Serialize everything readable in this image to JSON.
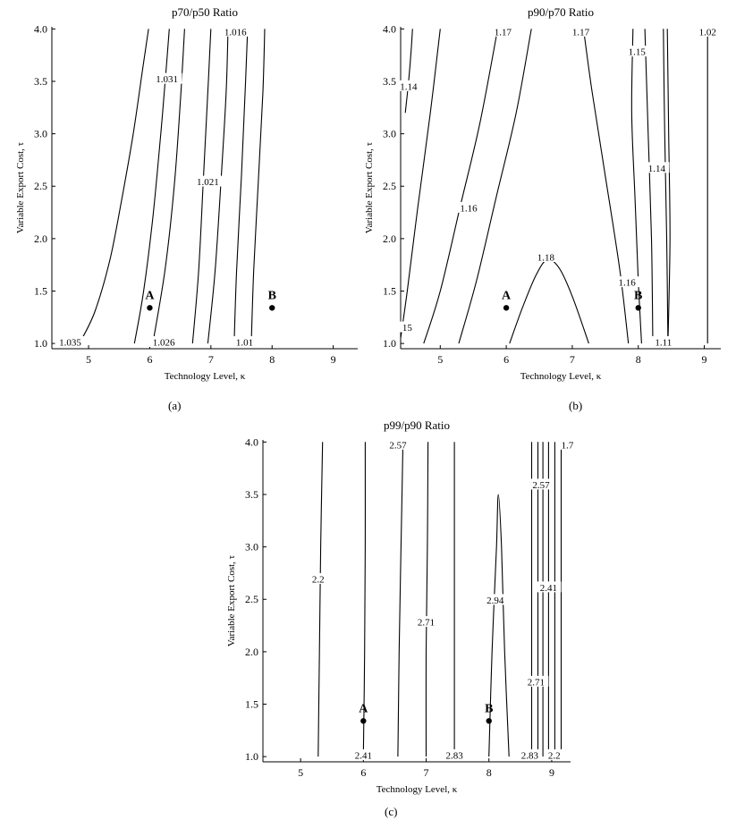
{
  "panels": [
    {
      "id": "a",
      "panel_label": "(a)",
      "chart_data": {
        "type": "contour",
        "title": "p70/p50 Ratio",
        "xlabel": "Technology Level, κ",
        "ylabel": "Variable Export Cost, τ",
        "xlim": [
          4.4,
          9.4
        ],
        "ylim": [
          0.95,
          4.02
        ],
        "xticks": [
          5,
          6,
          7,
          8,
          9
        ],
        "yticks": [
          1.0,
          1.5,
          2.0,
          2.5,
          3.0,
          3.5,
          4.0
        ],
        "contours": [
          {
            "level": "1.035",
            "points": [
              [
                4.85,
                1.0
              ],
              [
                5.1,
                1.3
              ],
              [
                5.35,
                1.8
              ],
              [
                5.55,
                2.4
              ],
              [
                5.73,
                3.0
              ],
              [
                5.88,
                3.6
              ],
              [
                5.98,
                4.0
              ]
            ]
          },
          {
            "level": "1.031",
            "points": [
              [
                5.75,
                1.0
              ],
              [
                5.9,
                1.5
              ],
              [
                6.05,
                2.2
              ],
              [
                6.18,
                3.0
              ],
              [
                6.28,
                3.7
              ],
              [
                6.32,
                4.0
              ]
            ]
          },
          {
            "level": "1.026",
            "points": [
              [
                6.05,
                1.0
              ],
              [
                6.25,
                1.7
              ],
              [
                6.4,
                2.5
              ],
              [
                6.5,
                3.3
              ],
              [
                6.57,
                4.0
              ]
            ]
          },
          {
            "level": "1.021",
            "points": [
              [
                6.7,
                1.0
              ],
              [
                6.8,
                1.7
              ],
              [
                6.88,
                2.6
              ],
              [
                6.95,
                3.4
              ],
              [
                7.0,
                4.0
              ]
            ]
          },
          {
            "level": "",
            "points": [
              [
                6.95,
                1.0
              ],
              [
                7.07,
                1.7
              ],
              [
                7.17,
                2.6
              ],
              [
                7.25,
                3.4
              ],
              [
                7.28,
                4.0
              ]
            ]
          },
          {
            "level": "1.016",
            "points": [
              [
                7.38,
                1.0
              ],
              [
                7.42,
                1.7
              ],
              [
                7.5,
                2.6
              ],
              [
                7.56,
                3.4
              ],
              [
                7.6,
                4.0
              ]
            ]
          },
          {
            "level": "1.01",
            "points": [
              [
                7.66,
                1.0
              ],
              [
                7.7,
                1.7
              ],
              [
                7.78,
                2.6
              ],
              [
                7.85,
                3.4
              ],
              [
                7.88,
                4.0
              ]
            ]
          }
        ],
        "contour_labels": [
          {
            "text": "1.035",
            "x": 4.7,
            "y": 1.01
          },
          {
            "text": "1.031",
            "x": 6.28,
            "y": 3.52
          },
          {
            "text": "1.026",
            "x": 6.23,
            "y": 1.01
          },
          {
            "text": "1.021",
            "x": 6.95,
            "y": 2.54
          },
          {
            "text": "1.016",
            "x": 7.4,
            "y": 3.97
          },
          {
            "text": "1.01",
            "x": 7.55,
            "y": 1.01
          }
        ],
        "points": [
          {
            "label": "A",
            "x": 6.0,
            "y": 1.34
          },
          {
            "label": "B",
            "x": 8.0,
            "y": 1.34
          }
        ]
      }
    },
    {
      "id": "b",
      "panel_label": "(b)",
      "chart_data": {
        "type": "contour",
        "title": "p90/p70 Ratio",
        "xlabel": "Technology Level, κ",
        "ylabel": "Variable Export Cost, τ",
        "xlim": [
          4.4,
          9.25
        ],
        "ylim": [
          0.95,
          4.02
        ],
        "xticks": [
          5,
          6,
          7,
          8,
          9
        ],
        "yticks": [
          1.0,
          1.5,
          2.0,
          2.5,
          3.0,
          3.5,
          4.0
        ],
        "contours": [
          {
            "level": "1.15",
            "points": [
              [
                4.4,
                1.05
              ],
              [
                4.5,
                1.5
              ],
              [
                4.66,
                2.3
              ],
              [
                4.85,
                3.2
              ],
              [
                5.0,
                4.0
              ]
            ]
          },
          {
            "level": "1.14",
            "points": [
              [
                4.47,
                3.2
              ],
              [
                4.52,
                3.5
              ],
              [
                4.56,
                3.8
              ],
              [
                4.58,
                4.0
              ]
            ]
          },
          {
            "level": "1.16",
            "points": [
              [
                4.75,
                1.0
              ],
              [
                5.0,
                1.5
              ],
              [
                5.3,
                2.3
              ],
              [
                5.6,
                3.1
              ],
              [
                5.87,
                4.0
              ]
            ]
          },
          {
            "level": "1.17",
            "points": [
              [
                5.28,
                1.0
              ],
              [
                5.55,
                1.6
              ],
              [
                5.85,
                2.4
              ],
              [
                6.15,
                3.2
              ],
              [
                6.38,
                4.0
              ]
            ]
          },
          {
            "level": "1.17",
            "points": [
              [
                7.85,
                1.0
              ],
              [
                7.72,
                1.7
              ],
              [
                7.5,
                2.6
              ],
              [
                7.3,
                3.4
              ],
              [
                7.17,
                4.0
              ]
            ]
          },
          {
            "level": "1.18",
            "points": [
              [
                6.05,
                1.0
              ],
              [
                6.25,
                1.35
              ],
              [
                6.45,
                1.65
              ],
              [
                6.62,
                1.8
              ],
              [
                6.8,
                1.72
              ],
              [
                7.0,
                1.45
              ],
              [
                7.25,
                1.0
              ]
            ]
          },
          {
            "level": "1.16",
            "points": [
              [
                8.05,
                1.0
              ],
              [
                8.0,
                1.6
              ],
              [
                7.95,
                2.4
              ],
              [
                7.9,
                3.2
              ],
              [
                7.92,
                4.0
              ]
            ]
          },
          {
            "level": "1.15",
            "points": [
              [
                8.22,
                1.0
              ],
              [
                8.2,
                2.0
              ],
              [
                8.15,
                3.0
              ],
              [
                8.1,
                4.0
              ]
            ]
          },
          {
            "level": "1.14",
            "points": [
              [
                8.45,
                1.0
              ],
              [
                8.43,
                2.0
              ],
              [
                8.4,
                3.0
              ],
              [
                8.38,
                4.0
              ]
            ]
          },
          {
            "level": "1.11",
            "points": [
              [
                8.45,
                1.0
              ],
              [
                8.48,
                2.0
              ],
              [
                8.46,
                3.0
              ],
              [
                8.44,
                4.0
              ]
            ]
          },
          {
            "level": "1.02",
            "points": [
              [
                9.05,
                1.0
              ],
              [
                9.05,
                2.0
              ],
              [
                9.05,
                3.0
              ],
              [
                9.05,
                4.0
              ]
            ]
          }
        ],
        "contour_labels": [
          {
            "text": "1.14",
            "x": 4.52,
            "y": 3.45
          },
          {
            "text": "1.16",
            "x": 5.43,
            "y": 2.29
          },
          {
            "text": "1.17",
            "x": 5.95,
            "y": 3.97
          },
          {
            "text": "1.17",
            "x": 7.13,
            "y": 3.97
          },
          {
            "text": "1.18",
            "x": 6.6,
            "y": 1.82
          },
          {
            "text": "1.15",
            "x": 7.98,
            "y": 3.78
          },
          {
            "text": "1.14",
            "x": 8.28,
            "y": 2.67
          },
          {
            "text": "1.16",
            "x": 7.83,
            "y": 1.58
          },
          {
            "text": "1.11",
            "x": 8.38,
            "y": 1.01
          },
          {
            "text": "1.02",
            "x": 9.05,
            "y": 3.97
          },
          {
            "text": "15",
            "x": 4.5,
            "y": 1.15
          }
        ],
        "points": [
          {
            "label": "A",
            "x": 6.0,
            "y": 1.34
          },
          {
            "label": "B",
            "x": 8.0,
            "y": 1.34
          }
        ]
      }
    },
    {
      "id": "c",
      "panel_label": "(c)",
      "chart_data": {
        "type": "contour",
        "title": "p99/p90 Ratio",
        "xlabel": "Technology Level, κ",
        "ylabel": "Variable Export Cost, τ",
        "xlim": [
          4.4,
          9.3
        ],
        "ylim": [
          0.95,
          4.02
        ],
        "xticks": [
          5,
          6,
          7,
          8,
          9
        ],
        "yticks": [
          1.0,
          1.5,
          2.0,
          2.5,
          3.0,
          3.5,
          4.0
        ],
        "contours": [
          {
            "level": "2.2",
            "points": [
              [
                5.28,
                1.0
              ],
              [
                5.3,
                2.0
              ],
              [
                5.32,
                3.0
              ],
              [
                5.35,
                4.0
              ]
            ]
          },
          {
            "level": "2.41",
            "points": [
              [
                6.0,
                1.0
              ],
              [
                6.02,
                2.0
              ],
              [
                6.03,
                3.0
              ],
              [
                6.03,
                4.0
              ]
            ]
          },
          {
            "level": "2.57",
            "points": [
              [
                6.55,
                1.0
              ],
              [
                6.57,
                2.0
              ],
              [
                6.6,
                3.0
              ],
              [
                6.63,
                4.0
              ]
            ]
          },
          {
            "level": "2.71",
            "points": [
              [
                7.0,
                1.0
              ],
              [
                7.0,
                2.0
              ],
              [
                7.02,
                3.0
              ],
              [
                7.03,
                4.0
              ]
            ]
          },
          {
            "level": "2.83",
            "points": [
              [
                7.45,
                1.0
              ],
              [
                7.45,
                2.0
              ],
              [
                7.45,
                3.0
              ],
              [
                7.45,
                4.0
              ]
            ]
          },
          {
            "level": "2.94",
            "points": [
              [
                8.0,
                1.0
              ],
              [
                8.05,
                2.0
              ],
              [
                8.12,
                3.0
              ],
              [
                8.15,
                3.5
              ],
              [
                8.2,
                3.0
              ],
              [
                8.25,
                2.0
              ],
              [
                8.32,
                1.0
              ]
            ]
          },
          {
            "level": "2.83",
            "points": [
              [
                8.68,
                1.0
              ],
              [
                8.68,
                2.5
              ],
              [
                8.68,
                4.0
              ]
            ]
          },
          {
            "level": "2.71",
            "points": [
              [
                8.78,
                1.0
              ],
              [
                8.78,
                2.5
              ],
              [
                8.78,
                4.0
              ]
            ]
          },
          {
            "level": "2.57",
            "points": [
              [
                8.86,
                1.0
              ],
              [
                8.86,
                2.5
              ],
              [
                8.86,
                4.0
              ]
            ]
          },
          {
            "level": "2.41",
            "points": [
              [
                8.95,
                1.0
              ],
              [
                8.95,
                2.5
              ],
              [
                8.95,
                4.0
              ]
            ]
          },
          {
            "level": "2.2",
            "points": [
              [
                9.05,
                1.0
              ],
              [
                9.05,
                2.5
              ],
              [
                9.05,
                4.0
              ]
            ]
          },
          {
            "level": "1.7",
            "points": [
              [
                9.15,
                1.0
              ],
              [
                9.15,
                2.5
              ],
              [
                9.15,
                4.0
              ]
            ]
          }
        ],
        "contour_labels": [
          {
            "text": "2.2",
            "x": 5.28,
            "y": 2.69
          },
          {
            "text": "2.57",
            "x": 6.55,
            "y": 3.97
          },
          {
            "text": "2.71",
            "x": 7.0,
            "y": 2.28
          },
          {
            "text": "2.94",
            "x": 8.1,
            "y": 2.49
          },
          {
            "text": "2.57",
            "x": 8.83,
            "y": 3.59
          },
          {
            "text": "2.41",
            "x": 8.95,
            "y": 2.61
          },
          {
            "text": "2.71",
            "x": 8.75,
            "y": 1.71
          },
          {
            "text": "1.7",
            "x": 9.25,
            "y": 3.97
          },
          {
            "text": "2.41",
            "x": 6.0,
            "y": 1.01
          },
          {
            "text": "2.83",
            "x": 7.45,
            "y": 1.01
          },
          {
            "text": "2.83",
            "x": 8.65,
            "y": 1.01
          },
          {
            "text": "2.2",
            "x": 9.04,
            "y": 1.01
          }
        ],
        "points": [
          {
            "label": "A",
            "x": 6.0,
            "y": 1.34
          },
          {
            "label": "B",
            "x": 8.0,
            "y": 1.34
          }
        ]
      }
    }
  ]
}
